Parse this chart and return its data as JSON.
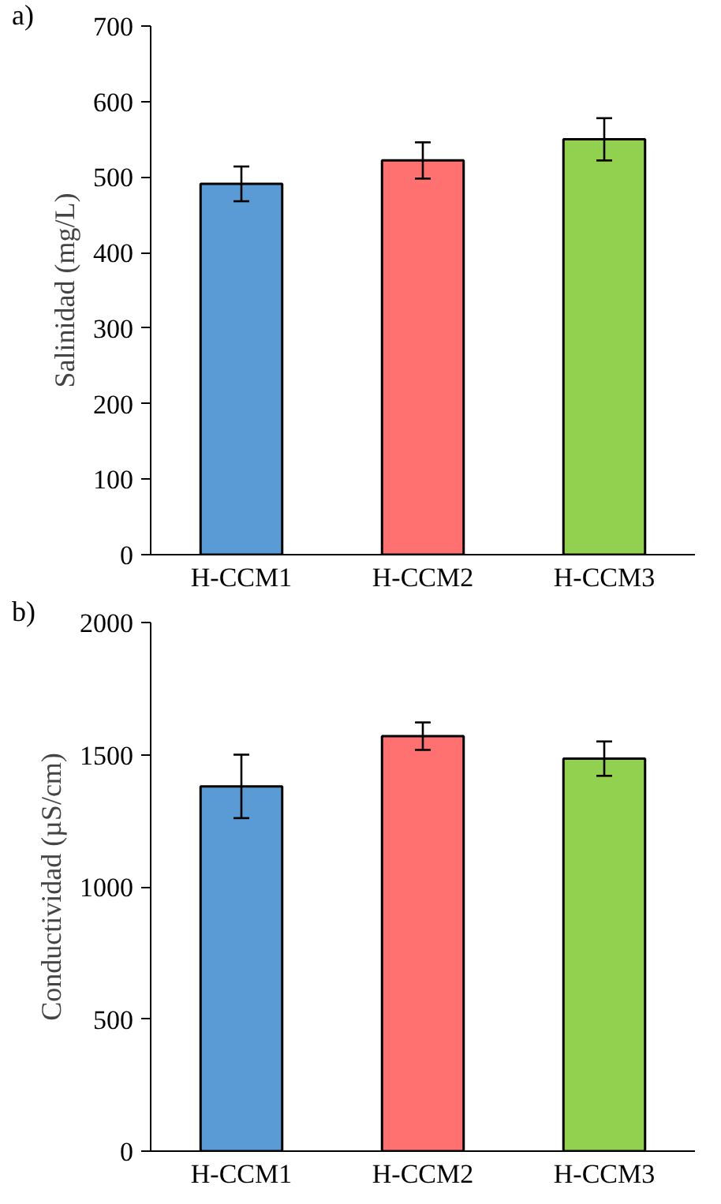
{
  "chart_data": [
    {
      "type": "bar",
      "ylabel": "Salinidad (mg/L)",
      "categories": [
        "H-CCM1",
        "H-CCM2",
        "H-CCM3"
      ],
      "values": [
        491,
        522,
        550
      ],
      "colors": [
        "#5b9bd5",
        "#ff7171",
        "#92d050"
      ],
      "errors": [
        23,
        24,
        28
      ],
      "ylim": [
        0,
        700
      ],
      "yticks": [
        0,
        100,
        200,
        300,
        400,
        500,
        600,
        700
      ],
      "grid": false,
      "annotations": [
        "a)"
      ]
    },
    {
      "type": "bar",
      "ylabel": "Conductividad (µS/cm)",
      "categories": [
        "H-CCM1",
        "H-CCM2",
        "H-CCM3"
      ],
      "values": [
        1380,
        1570,
        1485
      ],
      "colors": [
        "#5b9bd5",
        "#ff7171",
        "#92d050"
      ],
      "errors": [
        120,
        52,
        65
      ],
      "ylim": [
        0,
        2000
      ],
      "yticks": [
        0,
        500,
        1000,
        1500,
        2000
      ],
      "grid": false,
      "annotations": [
        "b)"
      ]
    }
  ]
}
